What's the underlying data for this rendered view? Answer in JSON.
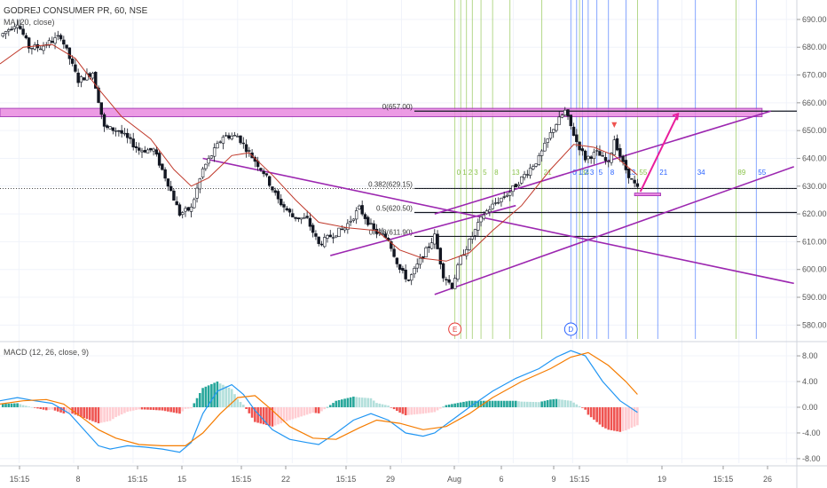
{
  "colors": {
    "bull": "#ffffff",
    "bear": "#131722",
    "wick": "#131722",
    "ma": "#c0392b",
    "channel": "#9c27b0",
    "zone_fill": "#e98ae0",
    "zone_border": "#9c27b0",
    "macd_line": "#2196f3",
    "signal_line": "#f57c00",
    "hist_pos_strong": "#26a69a",
    "hist_pos_weak": "#b2dfdb",
    "hist_neg_strong": "#ef5350",
    "hist_neg_weak": "#ffcdd2",
    "fib_green": "#8bc34a",
    "fib_blue": "#2962ff",
    "level_line": "#131722",
    "grid": "#f0f3fa",
    "label_e": "#e53935",
    "label_d": "#2962ff"
  },
  "legend": {
    "symbol": "GODREJ CONSUMER PR, 60, NSE",
    "ma": "MA (20, close)"
  },
  "macd_legend": "MACD (12, 26, close, 9)",
  "chart_data": [
    {
      "type": "candlestick",
      "title": "GODREJ CONSUMER PR, 60, NSE",
      "indicator": "MA (20, close)",
      "ylim": [
        575,
        697
      ],
      "y_ticks": [
        "690.00",
        "680.00",
        "670.00",
        "660.00",
        "650.00",
        "640.00",
        "630.00",
        "620.00",
        "610.00",
        "600.00",
        "590.00",
        "580.00"
      ],
      "x_ticks": [
        "15:15",
        "8",
        "15:15",
        "15",
        "15:15",
        "22",
        "15:15",
        "29",
        "Aug",
        "6",
        "9",
        "15:15",
        "19",
        "15:15",
        "26"
      ],
      "price_path": [
        {
          "t": 0,
          "p": 684
        },
        {
          "t": 6,
          "p": 689
        },
        {
          "t": 10,
          "p": 680
        },
        {
          "t": 14,
          "p": 680
        },
        {
          "t": 21,
          "p": 684
        },
        {
          "t": 27,
          "p": 668
        },
        {
          "t": 32,
          "p": 671
        },
        {
          "t": 36,
          "p": 651
        },
        {
          "t": 41,
          "p": 650
        },
        {
          "t": 48,
          "p": 643
        },
        {
          "t": 53,
          "p": 643
        },
        {
          "t": 58,
          "p": 631
        },
        {
          "t": 62,
          "p": 620
        },
        {
          "t": 66,
          "p": 622
        },
        {
          "t": 70,
          "p": 636
        },
        {
          "t": 77,
          "p": 648
        },
        {
          "t": 82,
          "p": 648
        },
        {
          "t": 86,
          "p": 642
        },
        {
          "t": 91,
          "p": 635
        },
        {
          "t": 96,
          "p": 625
        },
        {
          "t": 101,
          "p": 619
        },
        {
          "t": 106,
          "p": 618
        },
        {
          "t": 110,
          "p": 609
        },
        {
          "t": 114,
          "p": 612
        },
        {
          "t": 119,
          "p": 615
        },
        {
          "t": 124,
          "p": 622
        },
        {
          "t": 129,
          "p": 614
        },
        {
          "t": 134,
          "p": 611
        },
        {
          "t": 138,
          "p": 600
        },
        {
          "t": 141,
          "p": 596
        },
        {
          "t": 146,
          "p": 605
        },
        {
          "t": 150,
          "p": 612
        },
        {
          "t": 153,
          "p": 598
        },
        {
          "t": 156,
          "p": 594
        },
        {
          "t": 159,
          "p": 604
        },
        {
          "t": 163,
          "p": 612
        },
        {
          "t": 167,
          "p": 620
        },
        {
          "t": 171,
          "p": 624
        },
        {
          "t": 176,
          "p": 628
        },
        {
          "t": 181,
          "p": 634
        },
        {
          "t": 186,
          "p": 640
        },
        {
          "t": 191,
          "p": 651
        },
        {
          "t": 195,
          "p": 657
        },
        {
          "t": 199,
          "p": 646
        },
        {
          "t": 202,
          "p": 640
        },
        {
          "t": 206,
          "p": 642
        },
        {
          "t": 210,
          "p": 638
        },
        {
          "t": 212,
          "p": 647
        },
        {
          "t": 215,
          "p": 638
        },
        {
          "t": 218,
          "p": 632
        },
        {
          "t": 220,
          "p": 629
        }
      ],
      "ma_path": [
        {
          "t": 0,
          "p": 674
        },
        {
          "t": 8,
          "p": 680
        },
        {
          "t": 18,
          "p": 681
        },
        {
          "t": 26,
          "p": 676
        },
        {
          "t": 34,
          "p": 665
        },
        {
          "t": 42,
          "p": 655
        },
        {
          "t": 52,
          "p": 647
        },
        {
          "t": 60,
          "p": 636
        },
        {
          "t": 66,
          "p": 630
        },
        {
          "t": 72,
          "p": 633
        },
        {
          "t": 80,
          "p": 641
        },
        {
          "t": 86,
          "p": 642
        },
        {
          "t": 94,
          "p": 634
        },
        {
          "t": 102,
          "p": 625
        },
        {
          "t": 110,
          "p": 617
        },
        {
          "t": 120,
          "p": 615
        },
        {
          "t": 130,
          "p": 614
        },
        {
          "t": 138,
          "p": 607
        },
        {
          "t": 146,
          "p": 604
        },
        {
          "t": 154,
          "p": 603
        },
        {
          "t": 162,
          "p": 606
        },
        {
          "t": 170,
          "p": 614
        },
        {
          "t": 180,
          "p": 623
        },
        {
          "t": 190,
          "p": 636
        },
        {
          "t": 198,
          "p": 645
        },
        {
          "t": 205,
          "p": 644
        },
        {
          "t": 212,
          "p": 641
        },
        {
          "t": 220,
          "p": 634
        }
      ],
      "fib_levels": [
        {
          "label": "0(657.00)",
          "price": 657.0
        },
        {
          "label": "0.382(629.15)",
          "price": 629.15
        },
        {
          "label": "0.5(620.50)",
          "price": 620.5
        },
        {
          "label": "0.618(611.90)",
          "price": 611.9
        }
      ],
      "fib_time_green": [
        {
          "t": 157,
          "label": "0"
        },
        {
          "t": 159,
          "label": "1"
        },
        {
          "t": 161,
          "label": "2"
        },
        {
          "t": 163,
          "label": "3"
        },
        {
          "t": 166,
          "label": "5"
        },
        {
          "t": 170,
          "label": "8"
        },
        {
          "t": 176,
          "label": "13"
        },
        {
          "t": 187,
          "label": "21"
        },
        {
          "t": 200,
          "label": "34"
        },
        {
          "t": 220,
          "label": "55"
        },
        {
          "t": 254,
          "label": "89"
        }
      ],
      "fib_time_blue": [
        {
          "t": 197,
          "label": "0"
        },
        {
          "t": 199,
          "label": "1"
        },
        {
          "t": 201,
          "label": "2"
        },
        {
          "t": 203,
          "label": "3"
        },
        {
          "t": 206,
          "label": "5"
        },
        {
          "t": 210,
          "label": "8"
        },
        {
          "t": 216,
          "label": "13"
        },
        {
          "t": 227,
          "label": "21"
        },
        {
          "t": 240,
          "label": "34"
        },
        {
          "t": 261,
          "label": "55"
        }
      ],
      "point_labels": [
        {
          "label": "E",
          "t": 157
        },
        {
          "label": "D",
          "t": 197
        }
      ],
      "resistance_zone": [
        655,
        658
      ]
    },
    {
      "type": "histogram-line",
      "title": "MACD (12, 26, close, 9)",
      "ylim": [
        -8.7,
        9.8
      ],
      "y_ticks": [
        "8.00",
        "4.00",
        "0.00",
        "-4.00",
        "-8.00"
      ],
      "macd_path": [
        {
          "t": 0,
          "v": 1.0
        },
        {
          "t": 6,
          "v": 1.5
        },
        {
          "t": 12,
          "v": 1.0
        },
        {
          "t": 18,
          "v": 0.6
        },
        {
          "t": 24,
          "v": -1.0
        },
        {
          "t": 30,
          "v": -4.0
        },
        {
          "t": 34,
          "v": -6.0
        },
        {
          "t": 38,
          "v": -6.5
        },
        {
          "t": 44,
          "v": -6.0
        },
        {
          "t": 50,
          "v": -6.2
        },
        {
          "t": 56,
          "v": -6.5
        },
        {
          "t": 62,
          "v": -7.0
        },
        {
          "t": 66,
          "v": -5.5
        },
        {
          "t": 70,
          "v": -1.0
        },
        {
          "t": 75,
          "v": 2.5
        },
        {
          "t": 80,
          "v": 3.5
        },
        {
          "t": 84,
          "v": 2.0
        },
        {
          "t": 88,
          "v": -0.5
        },
        {
          "t": 94,
          "v": -3.5
        },
        {
          "t": 100,
          "v": -5.0
        },
        {
          "t": 106,
          "v": -5.5
        },
        {
          "t": 110,
          "v": -5.8
        },
        {
          "t": 116,
          "v": -4.0
        },
        {
          "t": 122,
          "v": -2.0
        },
        {
          "t": 128,
          "v": -1.0
        },
        {
          "t": 134,
          "v": -2.0
        },
        {
          "t": 140,
          "v": -4.0
        },
        {
          "t": 146,
          "v": -4.5
        },
        {
          "t": 150,
          "v": -4.0
        },
        {
          "t": 156,
          "v": -2.0
        },
        {
          "t": 162,
          "v": 0.0
        },
        {
          "t": 170,
          "v": 2.5
        },
        {
          "t": 178,
          "v": 4.5
        },
        {
          "t": 186,
          "v": 6.0
        },
        {
          "t": 192,
          "v": 7.8
        },
        {
          "t": 197,
          "v": 8.8
        },
        {
          "t": 202,
          "v": 8.0
        },
        {
          "t": 208,
          "v": 4.0
        },
        {
          "t": 214,
          "v": 1.0
        },
        {
          "t": 220,
          "v": -0.8
        }
      ],
      "signal_path": [
        {
          "t": 0,
          "v": 0.5
        },
        {
          "t": 8,
          "v": 1.0
        },
        {
          "t": 16,
          "v": 1.2
        },
        {
          "t": 22,
          "v": 0.5
        },
        {
          "t": 28,
          "v": -1.5
        },
        {
          "t": 34,
          "v": -3.5
        },
        {
          "t": 40,
          "v": -4.8
        },
        {
          "t": 48,
          "v": -5.8
        },
        {
          "t": 56,
          "v": -6.0
        },
        {
          "t": 64,
          "v": -6.0
        },
        {
          "t": 70,
          "v": -4.0
        },
        {
          "t": 76,
          "v": -1.0
        },
        {
          "t": 82,
          "v": 1.5
        },
        {
          "t": 88,
          "v": 1.8
        },
        {
          "t": 94,
          "v": -0.5
        },
        {
          "t": 100,
          "v": -3.0
        },
        {
          "t": 108,
          "v": -4.8
        },
        {
          "t": 116,
          "v": -5.0
        },
        {
          "t": 124,
          "v": -3.2
        },
        {
          "t": 130,
          "v": -2.0
        },
        {
          "t": 138,
          "v": -2.5
        },
        {
          "t": 146,
          "v": -3.5
        },
        {
          "t": 154,
          "v": -3.0
        },
        {
          "t": 162,
          "v": -1.0
        },
        {
          "t": 170,
          "v": 1.5
        },
        {
          "t": 180,
          "v": 4.0
        },
        {
          "t": 190,
          "v": 6.0
        },
        {
          "t": 197,
          "v": 7.8
        },
        {
          "t": 203,
          "v": 8.5
        },
        {
          "t": 210,
          "v": 6.5
        },
        {
          "t": 216,
          "v": 4.0
        },
        {
          "t": 220,
          "v": 2.0
        }
      ]
    }
  ]
}
